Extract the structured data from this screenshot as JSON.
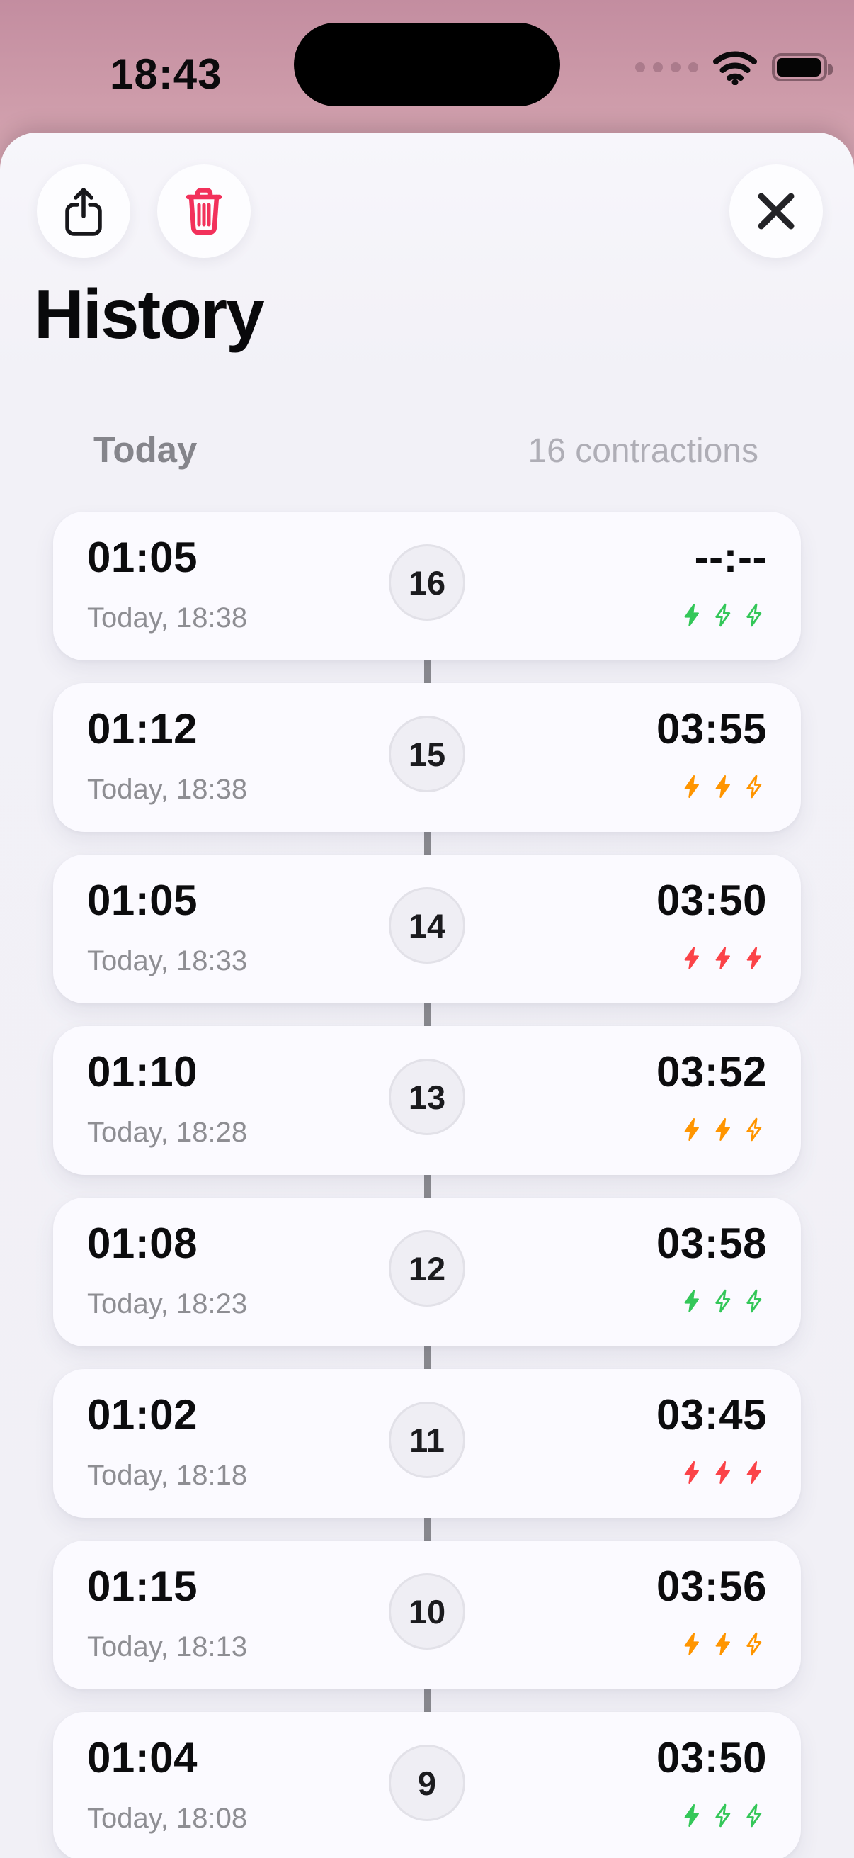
{
  "status_bar": {
    "time": "18:43"
  },
  "toolbar": {
    "share_icon": "share-icon",
    "trash_icon": "trash-icon",
    "close_icon": "close-icon"
  },
  "header": {
    "title": "History"
  },
  "section": {
    "label": "Today",
    "count": "16 contractions"
  },
  "colors": {
    "green": "#34C759",
    "orange": "#FF9500",
    "red": "#FB4348",
    "trash": "#F2315B",
    "wallpaper_top": "#C38DA0",
    "wallpaper_bottom": "#D7A9B4"
  },
  "rows": [
    {
      "duration": "01:05",
      "date": "Today, 18:38",
      "index": "16",
      "interval": "--:--",
      "intensity_color": "green",
      "intensity_filled": 1
    },
    {
      "duration": "01:12",
      "date": "Today, 18:38",
      "index": "15",
      "interval": "03:55",
      "intensity_color": "orange",
      "intensity_filled": 2
    },
    {
      "duration": "01:05",
      "date": "Today, 18:33",
      "index": "14",
      "interval": "03:50",
      "intensity_color": "red",
      "intensity_filled": 3
    },
    {
      "duration": "01:10",
      "date": "Today, 18:28",
      "index": "13",
      "interval": "03:52",
      "intensity_color": "orange",
      "intensity_filled": 2
    },
    {
      "duration": "01:08",
      "date": "Today, 18:23",
      "index": "12",
      "interval": "03:58",
      "intensity_color": "green",
      "intensity_filled": 1
    },
    {
      "duration": "01:02",
      "date": "Today, 18:18",
      "index": "11",
      "interval": "03:45",
      "intensity_color": "red",
      "intensity_filled": 3
    },
    {
      "duration": "01:15",
      "date": "Today, 18:13",
      "index": "10",
      "interval": "03:56",
      "intensity_color": "orange",
      "intensity_filled": 2
    },
    {
      "duration": "01:04",
      "date": "Today, 18:08",
      "index": "9",
      "interval": "03:50",
      "intensity_color": "green",
      "intensity_filled": 1
    }
  ]
}
